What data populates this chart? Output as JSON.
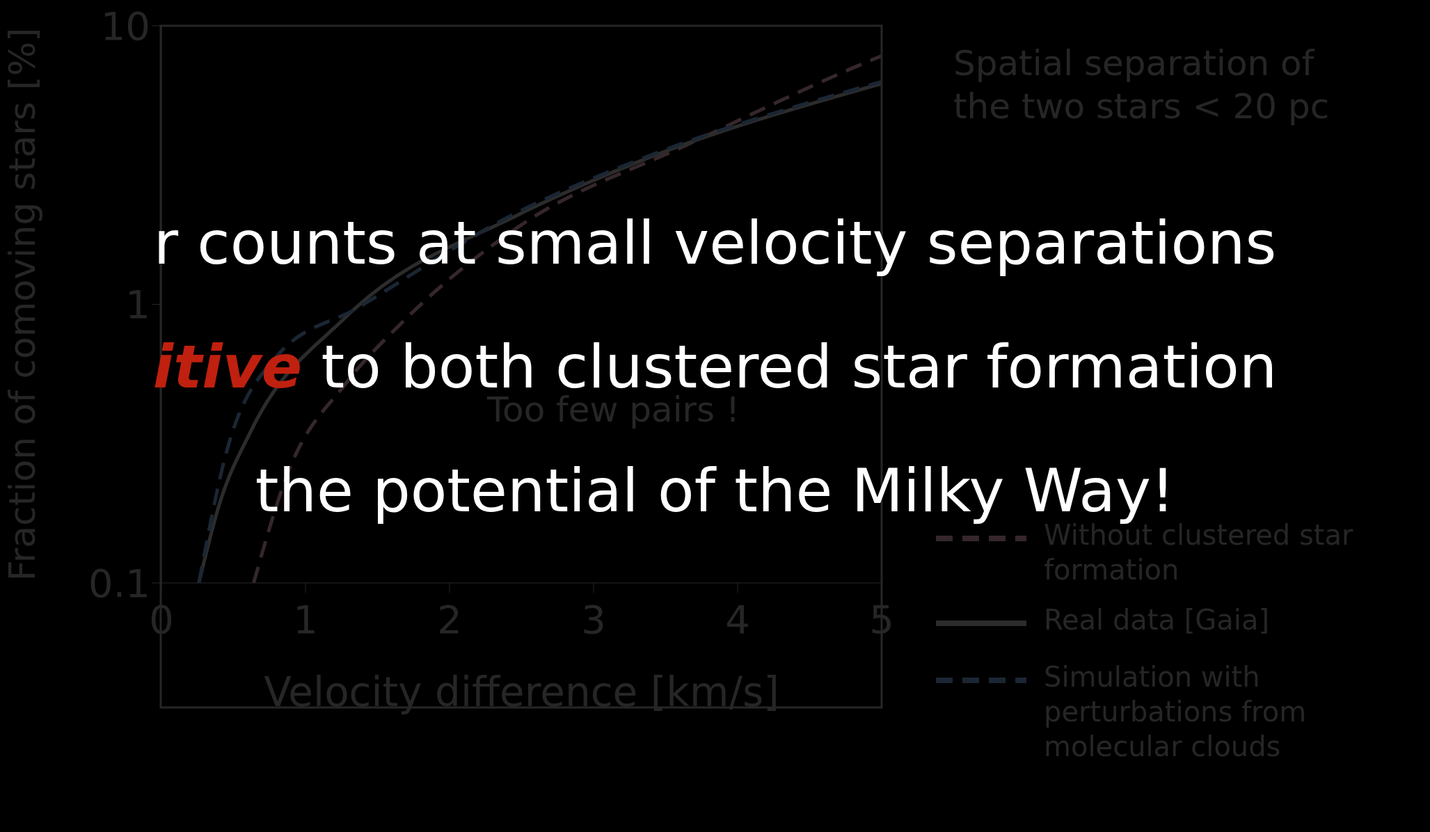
{
  "chart_data": {
    "type": "line",
    "xlabel": "Velocity difference [km/s]",
    "ylabel": "Fraction of comoving stars [%]",
    "legend_title": "Spatial separation of the two stars < 20 pc",
    "legend": "right",
    "log": "y",
    "xlim": [
      0,
      5
    ],
    "xticks": [
      0,
      1,
      2,
      3,
      4,
      5
    ],
    "ylim": [
      0.1,
      10
    ],
    "yticks": [
      0.1,
      1,
      10
    ],
    "series": [
      {
        "name": "Without clustered star formation",
        "color": "#35272b",
        "line_style": "dashed",
        "x": [
          0.64,
          0.88,
          1.28,
          1.68,
          2.48,
          3.68,
          4.84,
          5.0
        ],
        "values": [
          0.1,
          0.25,
          0.52,
          0.87,
          1.9,
          3.8,
          7.2,
          7.8
        ]
      },
      {
        "name": "Real data [Gaia]",
        "color": "#2c2c2c",
        "line_style": "solid",
        "x": [
          0.26,
          0.4,
          0.62,
          1.28,
          2.48,
          3.28,
          5.0
        ],
        "values": [
          0.1,
          0.19,
          0.35,
          0.9,
          2.1,
          3.2,
          6.2
        ]
      },
      {
        "name": "Simulation with perturbations from molecular clouds",
        "color": "#1b2634",
        "line_style": "dashed",
        "x": [
          0.26,
          0.44,
          0.8,
          1.36,
          2.48,
          3.28,
          5.0
        ],
        "values": [
          0.1,
          0.28,
          0.65,
          0.97,
          2.15,
          3.25,
          6.3
        ]
      }
    ],
    "annotations": [
      "r counts at small velocity separations",
      "itive",
      "to both clustered star formation",
      "the potential of the Milky Way!",
      "Too few pairs !"
    ]
  }
}
